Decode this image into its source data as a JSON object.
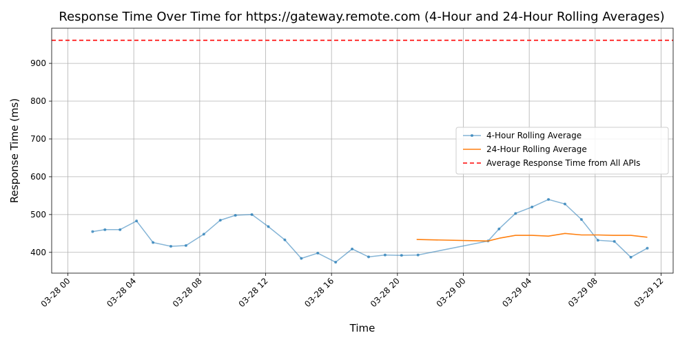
{
  "chart_data": {
    "type": "line",
    "title": "Response Time Over Time for https://gateway.remote.com (4-Hour and 24-Hour Rolling Averages)",
    "xlabel": "Time",
    "ylabel": "Response Time (ms)",
    "xlim": [
      "2024-03-27 23:01",
      "2024-03-29 12:44"
    ],
    "ylim": [
      345,
      993
    ],
    "grid": true,
    "legend_position": "center-right",
    "x_ticks": [
      {
        "t": "2024-03-28 00:00",
        "label": "03-28 00"
      },
      {
        "t": "2024-03-28 04:00",
        "label": "03-28 04"
      },
      {
        "t": "2024-03-28 08:00",
        "label": "03-28 08"
      },
      {
        "t": "2024-03-28 12:00",
        "label": "03-28 12"
      },
      {
        "t": "2024-03-28 16:00",
        "label": "03-28 16"
      },
      {
        "t": "2024-03-28 20:00",
        "label": "03-28 20"
      },
      {
        "t": "2024-03-29 00:00",
        "label": "03-29 00"
      },
      {
        "t": "2024-03-29 04:00",
        "label": "03-29 04"
      },
      {
        "t": "2024-03-29 08:00",
        "label": "03-29 08"
      },
      {
        "t": "2024-03-29 12:00",
        "label": "03-29 12"
      }
    ],
    "y_ticks": [
      400,
      500,
      600,
      700,
      800,
      900
    ],
    "series": [
      {
        "name": "4-Hour Rolling Average",
        "color": "#1f77b4",
        "style": "solid-with-markers",
        "points": [
          [
            "2024-03-28 01:30",
            455
          ],
          [
            "2024-03-28 02:15",
            460
          ],
          [
            "2024-03-28 03:10",
            460
          ],
          [
            "2024-03-28 04:10",
            483
          ],
          [
            "2024-03-28 05:10",
            426
          ],
          [
            "2024-03-28 06:15",
            416
          ],
          [
            "2024-03-28 07:10",
            418
          ],
          [
            "2024-03-28 08:15",
            448
          ],
          [
            "2024-03-28 09:15",
            485
          ],
          [
            "2024-03-28 10:10",
            498
          ],
          [
            "2024-03-28 11:10",
            500
          ],
          [
            "2024-03-28 12:10",
            468
          ],
          [
            "2024-03-28 13:10",
            433
          ],
          [
            "2024-03-28 14:10",
            384
          ],
          [
            "2024-03-28 15:10",
            398
          ],
          [
            "2024-03-28 16:15",
            374
          ],
          [
            "2024-03-28 17:15",
            409
          ],
          [
            "2024-03-28 18:15",
            388
          ],
          [
            "2024-03-28 19:15",
            393
          ],
          [
            "2024-03-28 20:15",
            392
          ],
          [
            "2024-03-28 21:15",
            393
          ],
          [
            "2024-03-29 01:30",
            430
          ],
          [
            "2024-03-29 02:10",
            462
          ],
          [
            "2024-03-29 03:10",
            503
          ],
          [
            "2024-03-29 04:10",
            520
          ],
          [
            "2024-03-29 05:10",
            540
          ],
          [
            "2024-03-29 06:10",
            528
          ],
          [
            "2024-03-29 07:10",
            487
          ],
          [
            "2024-03-29 08:10",
            432
          ],
          [
            "2024-03-29 09:10",
            429
          ],
          [
            "2024-03-29 10:10",
            387
          ],
          [
            "2024-03-29 11:10",
            411
          ]
        ]
      },
      {
        "name": "24-Hour Rolling Average",
        "color": "#ff7f0e",
        "style": "solid",
        "points": [
          [
            "2024-03-28 21:10",
            434
          ],
          [
            "2024-03-29 01:30",
            430
          ],
          [
            "2024-03-29 02:15",
            438
          ],
          [
            "2024-03-29 03:10",
            445
          ],
          [
            "2024-03-29 04:10",
            445
          ],
          [
            "2024-03-29 05:10",
            443
          ],
          [
            "2024-03-29 06:10",
            450
          ],
          [
            "2024-03-29 07:10",
            446
          ],
          [
            "2024-03-29 08:10",
            446
          ],
          [
            "2024-03-29 09:10",
            445
          ],
          [
            "2024-03-29 10:10",
            445
          ],
          [
            "2024-03-29 11:10",
            440
          ]
        ]
      },
      {
        "name": "Average Response Time from All APIs",
        "color": "#ff0000",
        "style": "dashed-horizontal",
        "value": 961
      }
    ]
  }
}
